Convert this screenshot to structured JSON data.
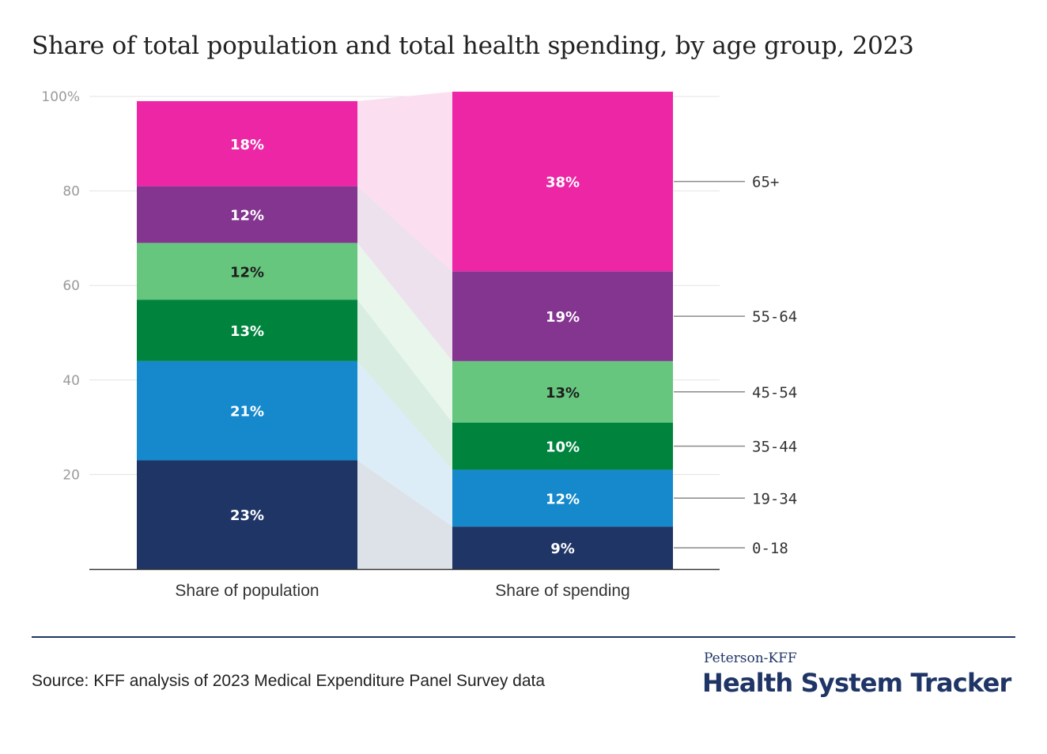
{
  "chart_data": {
    "type": "bar",
    "stacked": true,
    "title": "Share of total population and total health spending, by age group, 2023",
    "categories": [
      "Share of population",
      "Share of spending"
    ],
    "ylim": [
      0,
      100
    ],
    "yticks": [
      "20",
      "40",
      "60",
      "80",
      "100%"
    ],
    "grid": true,
    "series": [
      {
        "name": "0-18",
        "color": "#1f3566",
        "values": [
          23,
          9
        ],
        "labels": [
          "23%",
          "9%"
        ]
      },
      {
        "name": "19-34",
        "color": "#1689cc",
        "values": [
          21,
          12
        ],
        "labels": [
          "21%",
          "12%"
        ]
      },
      {
        "name": "35-44",
        "color": "#00843d",
        "values": [
          13,
          10
        ],
        "labels": [
          "13%",
          "10%"
        ]
      },
      {
        "name": "45-54",
        "color": "#66c67e",
        "values": [
          12,
          13
        ],
        "labels": [
          "12%",
          "13%"
        ]
      },
      {
        "name": "55-64",
        "color": "#843590",
        "values": [
          12,
          19
        ],
        "labels": [
          "12%",
          "19%"
        ]
      },
      {
        "name": "65+",
        "color": "#ec26a4",
        "values": [
          18,
          38
        ],
        "labels": [
          "18%",
          "38%"
        ]
      }
    ]
  },
  "footer": {
    "source": "Source: KFF analysis of 2023 Medical Expenditure Panel Survey data",
    "brand_small": "Peterson-KFF",
    "brand_large": "Health System Tracker"
  }
}
